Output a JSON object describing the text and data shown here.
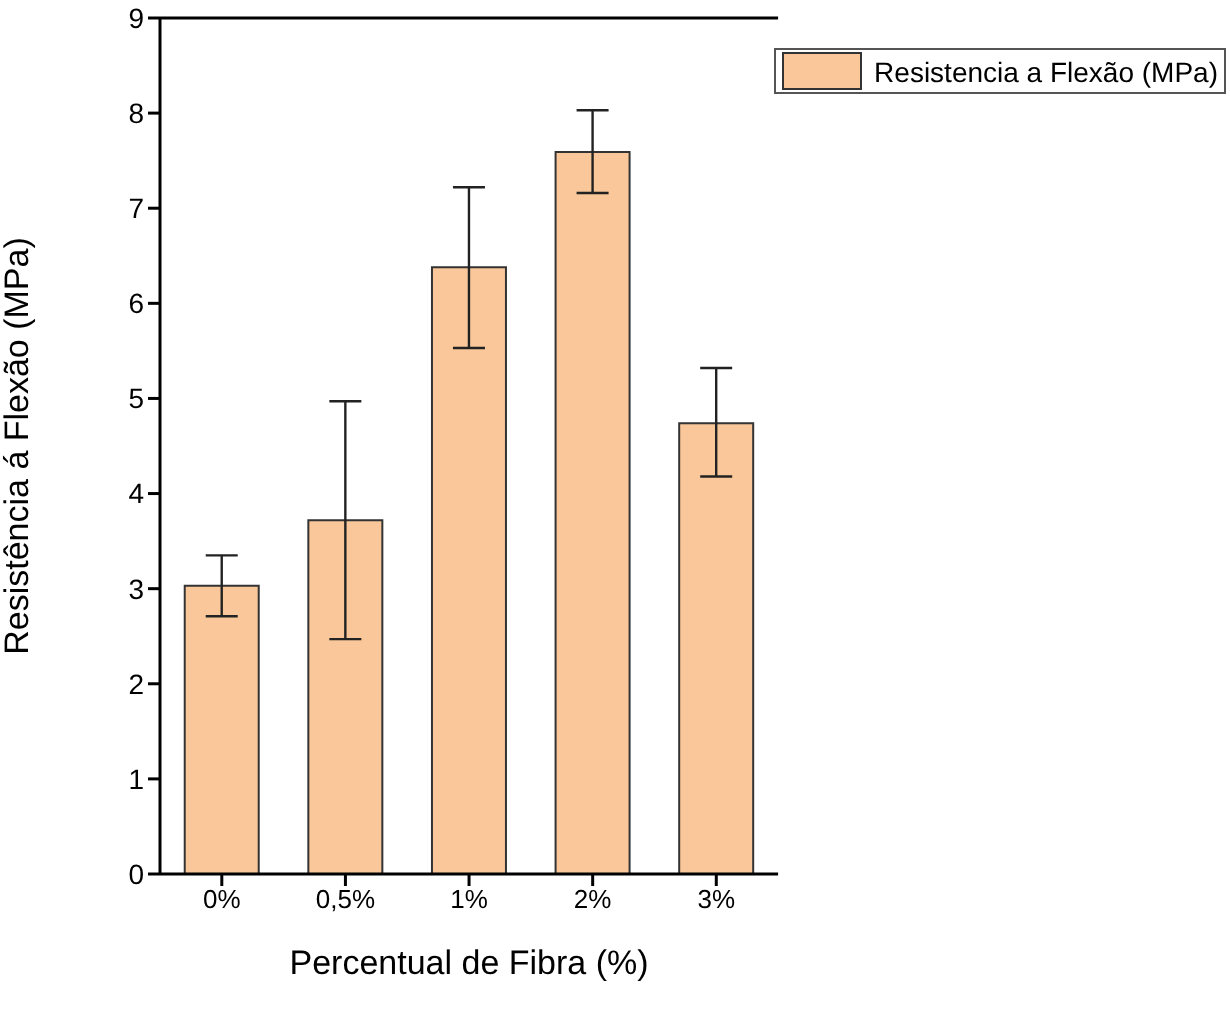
{
  "chart_data": {
    "type": "bar",
    "xlabel": "Percentual de Fibra (%)",
    "ylabel": "Resistência á Flexão (MPa)",
    "categories": [
      "0%",
      "0,5%",
      "1%",
      "2%",
      "3%"
    ],
    "series": [
      {
        "name": "Resistencia a Flexão (MPa)",
        "color": "#f9c799",
        "values": [
          3.03,
          3.72,
          6.38,
          7.59,
          4.74
        ],
        "errors": [
          [
            2.71,
            3.35
          ],
          [
            2.47,
            4.97
          ],
          [
            5.53,
            7.22
          ],
          [
            7.16,
            8.03
          ],
          [
            4.18,
            5.32
          ]
        ]
      }
    ],
    "ylim": [
      0,
      9
    ],
    "yticks": [
      0,
      1,
      2,
      3,
      4,
      5,
      6,
      7,
      8,
      9
    ],
    "grid": false,
    "legend": "top right"
  }
}
